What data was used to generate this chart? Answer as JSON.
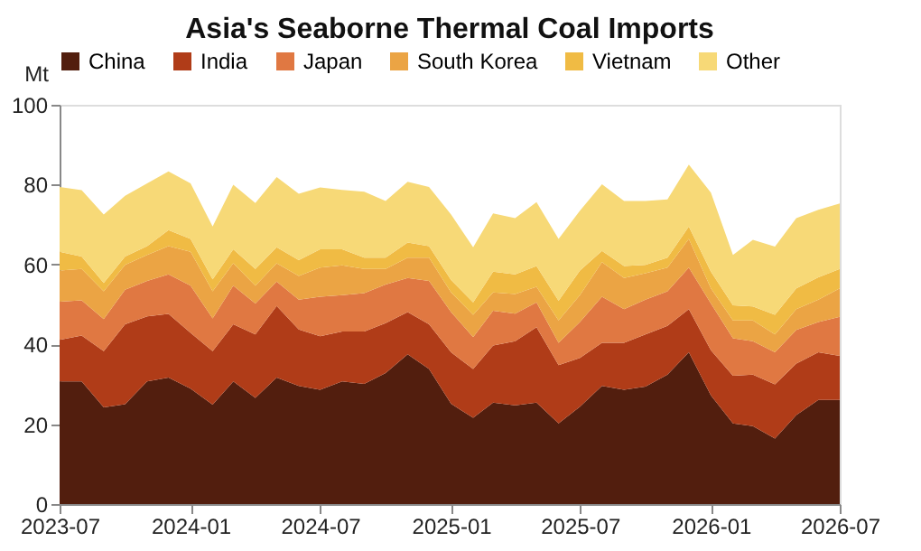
{
  "chart_data": {
    "type": "area",
    "stacked": true,
    "title": "Asia's Seaborne Thermal Coal Imports",
    "ylabel": "Mt",
    "x": [
      "2023-07",
      "2023-08",
      "2023-09",
      "2023-10",
      "2023-11",
      "2023-12",
      "2024-01",
      "2024-02",
      "2024-03",
      "2024-04",
      "2024-05",
      "2024-06",
      "2024-07",
      "2024-08",
      "2024-09",
      "2024-10",
      "2024-11",
      "2024-12",
      "2025-01",
      "2025-02",
      "2025-03",
      "2025-04",
      "2025-05",
      "2025-06",
      "2025-07",
      "2025-08",
      "2025-09",
      "2025-10",
      "2025-11",
      "2025-12",
      "2026-01",
      "2026-02",
      "2026-03",
      "2026-04",
      "2026-05",
      "2026-06",
      "2026-07"
    ],
    "series": [
      {
        "name": "China",
        "color": "#521e0e",
        "values": [
          30.7,
          30.7,
          24.2,
          25.0,
          30.7,
          31.7,
          28.9,
          24.9,
          30.7,
          26.6,
          31.7,
          29.6,
          28.6,
          30.7,
          30.1,
          32.8,
          37.5,
          33.8,
          25.1,
          21.6,
          25.4,
          24.7,
          25.4,
          20.2,
          24.4,
          29.6,
          28.6,
          29.4,
          32.4,
          38.0,
          27.2,
          20.2,
          19.5,
          16.4,
          22.3,
          26.1,
          26.1
        ]
      },
      {
        "name": "India",
        "color": "#b03c18",
        "values": [
          10.4,
          11.5,
          14.1,
          20.0,
          16.3,
          15.9,
          14.0,
          13.4,
          14.3,
          15.9,
          17.9,
          14.1,
          13.4,
          12.5,
          13.1,
          12.5,
          10.6,
          11.2,
          12.9,
          12.2,
          14.3,
          16.1,
          18.9,
          14.6,
          12.2,
          10.8,
          11.8,
          13.1,
          12.2,
          10.8,
          11.3,
          11.9,
          12.9,
          13.6,
          12.9,
          11.9,
          11.0
        ]
      },
      {
        "name": "Japan",
        "color": "#e07842",
        "values": [
          9.6,
          8.8,
          8.0,
          8.7,
          8.9,
          9.9,
          11.8,
          8.2,
          9.7,
          7.7,
          6.1,
          7.5,
          9.9,
          9.1,
          9.6,
          9.7,
          8.5,
          10.9,
          10.1,
          8.0,
          8.7,
          6.9,
          6.2,
          5.6,
          9.0,
          11.5,
          8.4,
          8.7,
          8.7,
          10.4,
          11.7,
          9.4,
          8.4,
          8.0,
          8.4,
          7.6,
          9.8
        ]
      },
      {
        "name": "South Korea",
        "color": "#eba444",
        "values": [
          7.8,
          7.9,
          7.0,
          6.2,
          6.5,
          7.1,
          8.5,
          6.8,
          5.6,
          4.5,
          4.6,
          5.9,
          7.3,
          7.5,
          6.1,
          3.9,
          5.1,
          5.8,
          4.9,
          5.6,
          4.6,
          4.9,
          3.9,
          5.6,
          6.7,
          8.7,
          7.8,
          6.6,
          5.9,
          7.2,
          3.8,
          4.5,
          5.2,
          4.5,
          5.2,
          5.6,
          7.1
        ]
      },
      {
        "name": "Vietnam",
        "color": "#f0bb44",
        "values": [
          4.7,
          3.1,
          2.1,
          2.1,
          2.2,
          4.0,
          3.2,
          3.0,
          3.5,
          4.2,
          4.0,
          4.0,
          4.6,
          4.0,
          2.8,
          2.8,
          3.8,
          2.9,
          3.1,
          3.1,
          5.2,
          4.9,
          5.2,
          4.9,
          6.2,
          2.8,
          3.0,
          2.1,
          2.5,
          3.1,
          4.2,
          3.8,
          3.5,
          4.9,
          5.2,
          5.6,
          4.9
        ]
      },
      {
        "name": "Other",
        "color": "#f7d977",
        "values": [
          16.2,
          16.6,
          17.1,
          15.2,
          15.7,
          14.7,
          13.9,
          13.2,
          16.2,
          16.5,
          17.6,
          16.6,
          15.5,
          14.9,
          16.5,
          14.2,
          15.2,
          14.8,
          16.4,
          13.8,
          14.6,
          14.1,
          16.0,
          15.5,
          15.0,
          16.7,
          16.3,
          16.0,
          14.6,
          15.5,
          19.8,
          12.6,
          16.7,
          17.1,
          17.6,
          16.9,
          16.4
        ]
      }
    ],
    "xlim": [
      "2023-07",
      "2026-07"
    ],
    "xticks": [
      "2023-07",
      "2024-01",
      "2024-07",
      "2025-01",
      "2025-07",
      "2026-01",
      "2026-07"
    ],
    "ylim": [
      0,
      100
    ],
    "yticks": [
      0,
      20,
      40,
      60,
      80,
      100
    ],
    "grid": false,
    "legend": "top"
  }
}
